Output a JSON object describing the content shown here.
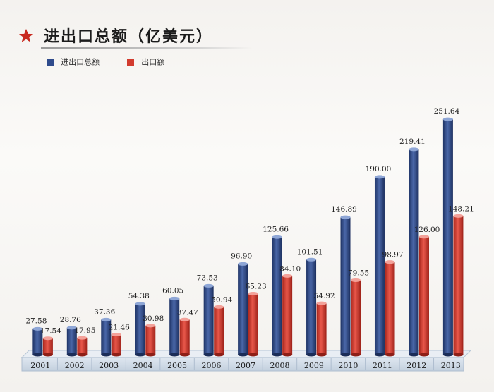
{
  "header": {
    "title": "进出口总额（亿美元）"
  },
  "chart_data": {
    "type": "bar",
    "categories": [
      "2001",
      "2002",
      "2003",
      "2004",
      "2005",
      "2006",
      "2007",
      "2008",
      "2009",
      "2010",
      "2011",
      "2012",
      "2013"
    ],
    "series": [
      {
        "name": "进出口总额",
        "color": "#2f4b8c",
        "values": [
          27.58,
          28.76,
          37.36,
          54.38,
          60.05,
          73.53,
          96.9,
          125.66,
          101.51,
          146.89,
          190.0,
          219.41,
          251.64
        ]
      },
      {
        "name": "出口额",
        "color": "#d23b2e",
        "values": [
          17.54,
          17.95,
          21.46,
          30.98,
          37.47,
          50.94,
          65.23,
          84.1,
          54.92,
          79.55,
          98.97,
          126.0,
          148.21
        ]
      }
    ],
    "labels": {
      "series0": [
        "27.58",
        "28.76",
        "37.36",
        "54.38",
        "60.05",
        "73.53",
        "96.90",
        "125.66",
        "101.51",
        "146.89",
        "190.00",
        "219.41",
        "251.64"
      ],
      "series1": [
        "17.54",
        "17.95",
        "21.46",
        "30.98",
        "37.47",
        "50.94",
        "65.23",
        "84.10",
        "54.92",
        "79.55",
        "98.97",
        "126.00",
        "148.21"
      ]
    },
    "title": "进出口总额（亿美元）",
    "xlabel": "",
    "ylabel": "",
    "ylim": [
      0,
      260
    ],
    "grid": false,
    "legend_position": "top-left"
  }
}
